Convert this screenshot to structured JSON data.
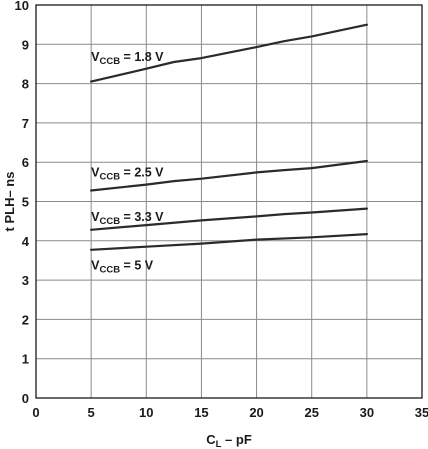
{
  "chart_data": {
    "type": "line",
    "xlabel": {
      "main": "C",
      "sub": "L",
      "rest": " – pF"
    },
    "ylabel": "t PLH– ns",
    "xlim": [
      0,
      35
    ],
    "ylim": [
      0,
      10
    ],
    "xticks": [
      "0",
      "5",
      "10",
      "15",
      "20",
      "25",
      "30",
      "35"
    ],
    "yticks": [
      "0",
      "1",
      "2",
      "3",
      "4",
      "5",
      "6",
      "7",
      "8",
      "9",
      "10"
    ],
    "grid": true,
    "series": [
      {
        "name": "VCCB = 1.8 V",
        "label": {
          "main": "V",
          "sub": "CCB",
          "rest": " = 1.8 V"
        },
        "x": [
          5,
          10,
          12.5,
          15,
          20,
          22.5,
          25,
          30
        ],
        "y": [
          8.05,
          8.38,
          8.55,
          8.65,
          8.93,
          9.08,
          9.2,
          9.5
        ]
      },
      {
        "name": "VCCB = 2.5 V",
        "label": {
          "main": "V",
          "sub": "CCB",
          "rest": " = 2.5 V"
        },
        "x": [
          5,
          10,
          12.5,
          15,
          20,
          22.5,
          25,
          30
        ],
        "y": [
          5.28,
          5.43,
          5.52,
          5.58,
          5.74,
          5.8,
          5.85,
          6.03
        ]
      },
      {
        "name": "VCCB = 3.3 V",
        "label": {
          "main": "V",
          "sub": "CCB",
          "rest": " = 3.3 V"
        },
        "x": [
          5,
          10,
          15,
          20,
          22.5,
          25,
          30
        ],
        "y": [
          4.28,
          4.4,
          4.52,
          4.62,
          4.68,
          4.72,
          4.82
        ]
      },
      {
        "name": "VCCB = 5 V",
        "label": {
          "main": "V",
          "sub": "CCB",
          "rest": " = 5 V"
        },
        "x": [
          5,
          10,
          15,
          20,
          25,
          30
        ],
        "y": [
          3.77,
          3.85,
          3.93,
          4.03,
          4.09,
          4.17
        ]
      }
    ]
  }
}
